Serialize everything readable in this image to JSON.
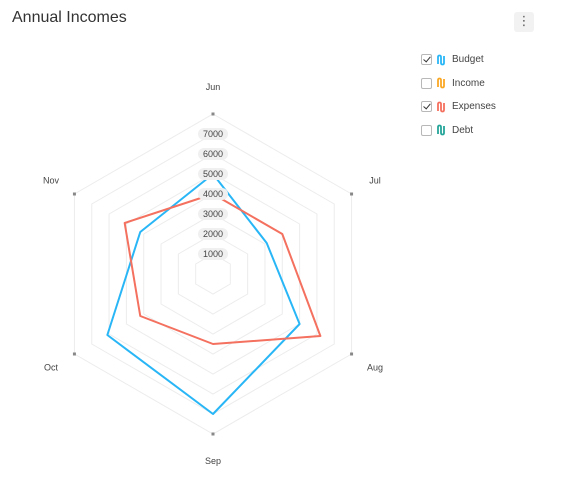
{
  "title": "Annual Incomes",
  "menu_icon": "vertical-dots-icon",
  "legend": [
    {
      "label": "Budget",
      "checked": true,
      "color": "#29b6f6",
      "icon": "series-icon"
    },
    {
      "label": "Income",
      "checked": false,
      "color": "#f9a825",
      "icon": "series-icon"
    },
    {
      "label": "Expenses",
      "checked": true,
      "color": "#f4705f",
      "icon": "series-icon"
    },
    {
      "label": "Debt",
      "checked": false,
      "color": "#26a69a",
      "icon": "series-icon"
    }
  ],
  "chart_data": {
    "type": "radar",
    "title": "Annual Incomes",
    "categories": [
      "Jun",
      "Jul",
      "Aug",
      "Sep",
      "Oct",
      "Nov"
    ],
    "rlim": [
      0,
      8000
    ],
    "ticks": [
      "1000",
      "2000",
      "3000",
      "4000",
      "5000",
      "6000",
      "7000"
    ],
    "tick_values": [
      1000,
      2000,
      3000,
      4000,
      5000,
      6000,
      7000
    ],
    "grid": true,
    "legend_position": "top-right",
    "series": [
      {
        "name": "Budget",
        "color": "#29b6f6",
        "values": [
          5000,
          3100,
          5000,
          7000,
          6100,
          4200
        ]
      },
      {
        "name": "Expenses",
        "color": "#f4705f",
        "values": [
          4000,
          4000,
          6200,
          3500,
          4200,
          5100
        ]
      }
    ]
  }
}
